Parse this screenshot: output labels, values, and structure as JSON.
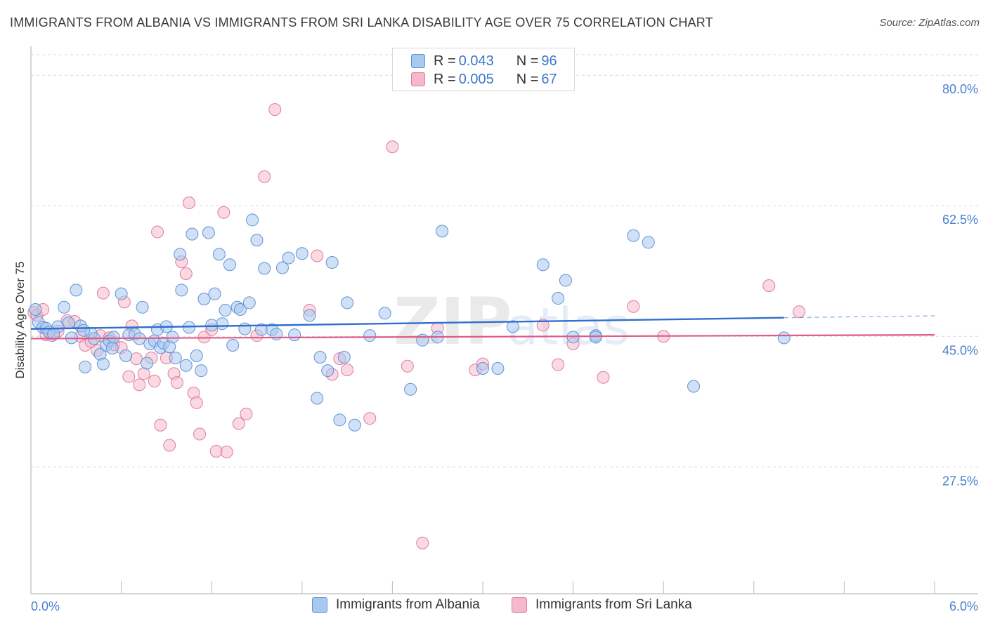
{
  "header": {
    "title": "IMMIGRANTS FROM ALBANIA VS IMMIGRANTS FROM SRI LANKA DISABILITY AGE OVER 75 CORRELATION CHART",
    "source": "Source: ZipAtlas.com"
  },
  "legend": {
    "albania": {
      "r_label": "R = ",
      "r_value": "0.043",
      "n_label": "N = ",
      "n_value": "96"
    },
    "srilanka": {
      "r_label": "R = ",
      "r_value": "0.005",
      "n_label": "N = ",
      "n_value": "67"
    }
  },
  "bottom_legend": {
    "albania": "Immigrants from Albania",
    "srilanka": "Immigrants from Sri Lanka"
  },
  "colors": {
    "albania_fill": "#a9c8f0",
    "albania_stroke": "#5f93d6",
    "albania_line": "#2f6fce",
    "srilanka_fill": "#f6b9cc",
    "srilanka_stroke": "#e07c9c",
    "srilanka_line": "#e05a8a",
    "tick_label": "#4a80cf"
  },
  "chart_data": {
    "type": "scatter",
    "title": "IMMIGRANTS FROM ALBANIA VS IMMIGRANTS FROM SRI LANKA DISABILITY AGE OVER 75 CORRELATION CHART",
    "xlabel": "",
    "ylabel": "Disability Age Over 75",
    "xlim": [
      0,
      6.0
    ],
    "ylim": [
      10.5,
      83.5
    ],
    "x_tick_labels": [
      "0.0%",
      "6.0%"
    ],
    "y_ticks": [
      27.5,
      45.0,
      62.5,
      80.0
    ],
    "y_tick_labels": [
      "27.5%",
      "45.0%",
      "62.5%",
      "80.0%"
    ],
    "grid": true,
    "watermark": "ZIPatlas",
    "series": [
      {
        "name": "Immigrants from Albania",
        "R": 0.043,
        "N": 96,
        "trend": {
          "x": [
            0.0,
            5.0
          ],
          "y": [
            46.0,
            47.5
          ],
          "dashed_to": [
            6.0,
            47.75
          ]
        },
        "points": [
          [
            0.03,
            48.6
          ],
          [
            0.05,
            46.9
          ],
          [
            0.08,
            46.2
          ],
          [
            0.1,
            46.1
          ],
          [
            0.18,
            46.3
          ],
          [
            0.22,
            48.9
          ],
          [
            0.25,
            46.8
          ],
          [
            0.27,
            44.8
          ],
          [
            0.3,
            51.2
          ],
          [
            0.33,
            46.4
          ],
          [
            0.36,
            40.9
          ],
          [
            0.4,
            45.4
          ],
          [
            0.42,
            44.7
          ],
          [
            0.46,
            42.6
          ],
          [
            0.48,
            41.3
          ],
          [
            0.5,
            43.8
          ],
          [
            0.52,
            44.4
          ],
          [
            0.54,
            43.4
          ],
          [
            0.6,
            50.7
          ],
          [
            0.63,
            42.4
          ],
          [
            0.65,
            45.2
          ],
          [
            0.69,
            45.3
          ],
          [
            0.72,
            44.7
          ],
          [
            0.74,
            48.9
          ],
          [
            0.77,
            41.4
          ],
          [
            0.79,
            44.0
          ],
          [
            0.82,
            44.4
          ],
          [
            0.84,
            45.9
          ],
          [
            0.86,
            43.5
          ],
          [
            0.88,
            44.1
          ],
          [
            0.92,
            43.6
          ],
          [
            0.94,
            44.9
          ],
          [
            0.96,
            42.1
          ],
          [
            0.99,
            56.0
          ],
          [
            1.03,
            41.1
          ],
          [
            1.05,
            46.2
          ],
          [
            1.07,
            58.7
          ],
          [
            1.1,
            42.4
          ],
          [
            1.13,
            40.4
          ],
          [
            1.15,
            50.0
          ],
          [
            1.18,
            58.9
          ],
          [
            1.2,
            46.5
          ],
          [
            1.22,
            50.7
          ],
          [
            1.25,
            56.0
          ],
          [
            1.27,
            46.7
          ],
          [
            1.29,
            48.5
          ],
          [
            1.32,
            54.6
          ],
          [
            1.34,
            43.8
          ],
          [
            1.37,
            48.9
          ],
          [
            1.39,
            48.6
          ],
          [
            1.42,
            46.0
          ],
          [
            1.45,
            49.5
          ],
          [
            1.47,
            60.6
          ],
          [
            1.5,
            57.9
          ],
          [
            1.53,
            45.9
          ],
          [
            1.55,
            54.1
          ],
          [
            1.6,
            45.9
          ],
          [
            1.63,
            45.3
          ],
          [
            1.67,
            54.2
          ],
          [
            1.71,
            55.5
          ],
          [
            1.75,
            45.2
          ],
          [
            1.8,
            56.1
          ],
          [
            1.85,
            47.8
          ],
          [
            1.9,
            36.7
          ],
          [
            1.92,
            42.2
          ],
          [
            1.97,
            40.4
          ],
          [
            2.0,
            54.9
          ],
          [
            2.05,
            33.8
          ],
          [
            2.08,
            42.2
          ],
          [
            2.1,
            49.5
          ],
          [
            2.15,
            33.1
          ],
          [
            2.25,
            45.1
          ],
          [
            2.35,
            48.1
          ],
          [
            2.52,
            37.9
          ],
          [
            2.6,
            44.5
          ],
          [
            2.7,
            44.9
          ],
          [
            2.73,
            59.1
          ],
          [
            3.0,
            40.7
          ],
          [
            3.1,
            40.7
          ],
          [
            3.2,
            46.3
          ],
          [
            3.4,
            54.6
          ],
          [
            3.5,
            50.1
          ],
          [
            3.55,
            52.5
          ],
          [
            3.75,
            45.1
          ],
          [
            3.6,
            44.9
          ],
          [
            3.75,
            44.9
          ],
          [
            4.0,
            58.5
          ],
          [
            4.1,
            57.6
          ],
          [
            4.4,
            38.3
          ],
          [
            5.0,
            44.8
          ],
          [
            0.12,
            45.6
          ],
          [
            0.15,
            45.3
          ],
          [
            0.35,
            45.8
          ],
          [
            0.55,
            44.9
          ],
          [
            0.9,
            46.3
          ],
          [
            1.0,
            51.2
          ]
        ]
      },
      {
        "name": "Immigrants from Sri Lanka",
        "R": 0.005,
        "N": 67,
        "trend": {
          "x": [
            0.0,
            6.0
          ],
          "y": [
            44.7,
            45.2
          ]
        },
        "points": [
          [
            0.02,
            48.2
          ],
          [
            0.04,
            47.8
          ],
          [
            0.1,
            45.2
          ],
          [
            0.14,
            45.1
          ],
          [
            0.18,
            45.7
          ],
          [
            0.24,
            47.1
          ],
          [
            0.29,
            47.0
          ],
          [
            0.33,
            45.0
          ],
          [
            0.36,
            43.8
          ],
          [
            0.4,
            44.3
          ],
          [
            0.44,
            43.1
          ],
          [
            0.46,
            45.1
          ],
          [
            0.48,
            50.8
          ],
          [
            0.52,
            44.8
          ],
          [
            0.55,
            43.9
          ],
          [
            0.6,
            43.5
          ],
          [
            0.62,
            49.6
          ],
          [
            0.65,
            39.6
          ],
          [
            0.67,
            46.4
          ],
          [
            0.7,
            42.0
          ],
          [
            0.72,
            38.5
          ],
          [
            0.75,
            40.0
          ],
          [
            0.8,
            42.1
          ],
          [
            0.82,
            39.0
          ],
          [
            0.84,
            59.0
          ],
          [
            0.86,
            33.1
          ],
          [
            0.9,
            42.1
          ],
          [
            0.92,
            30.4
          ],
          [
            0.95,
            40.0
          ],
          [
            0.97,
            38.8
          ],
          [
            1.0,
            55.0
          ],
          [
            1.03,
            53.4
          ],
          [
            1.05,
            62.9
          ],
          [
            1.08,
            37.4
          ],
          [
            1.1,
            36.1
          ],
          [
            1.12,
            31.9
          ],
          [
            1.15,
            44.9
          ],
          [
            1.2,
            45.9
          ],
          [
            1.23,
            29.6
          ],
          [
            1.28,
            61.6
          ],
          [
            1.3,
            29.5
          ],
          [
            1.38,
            33.3
          ],
          [
            1.43,
            34.6
          ],
          [
            1.5,
            45.1
          ],
          [
            1.55,
            66.4
          ],
          [
            1.62,
            75.4
          ],
          [
            1.85,
            48.5
          ],
          [
            1.9,
            55.8
          ],
          [
            2.0,
            39.9
          ],
          [
            2.05,
            42.0
          ],
          [
            2.1,
            40.5
          ],
          [
            2.25,
            34.0
          ],
          [
            2.4,
            70.4
          ],
          [
            2.5,
            41.0
          ],
          [
            2.6,
            17.3
          ],
          [
            2.7,
            46.1
          ],
          [
            2.95,
            40.5
          ],
          [
            3.0,
            41.3
          ],
          [
            3.4,
            46.5
          ],
          [
            3.5,
            41.2
          ],
          [
            3.6,
            44.0
          ],
          [
            3.8,
            39.5
          ],
          [
            4.0,
            49.0
          ],
          [
            4.2,
            45.0
          ],
          [
            4.9,
            51.8
          ],
          [
            5.1,
            48.3
          ],
          [
            0.08,
            48.6
          ]
        ]
      }
    ]
  },
  "watermark_text": {
    "zip": "ZIP",
    "atlas": "atlas"
  }
}
